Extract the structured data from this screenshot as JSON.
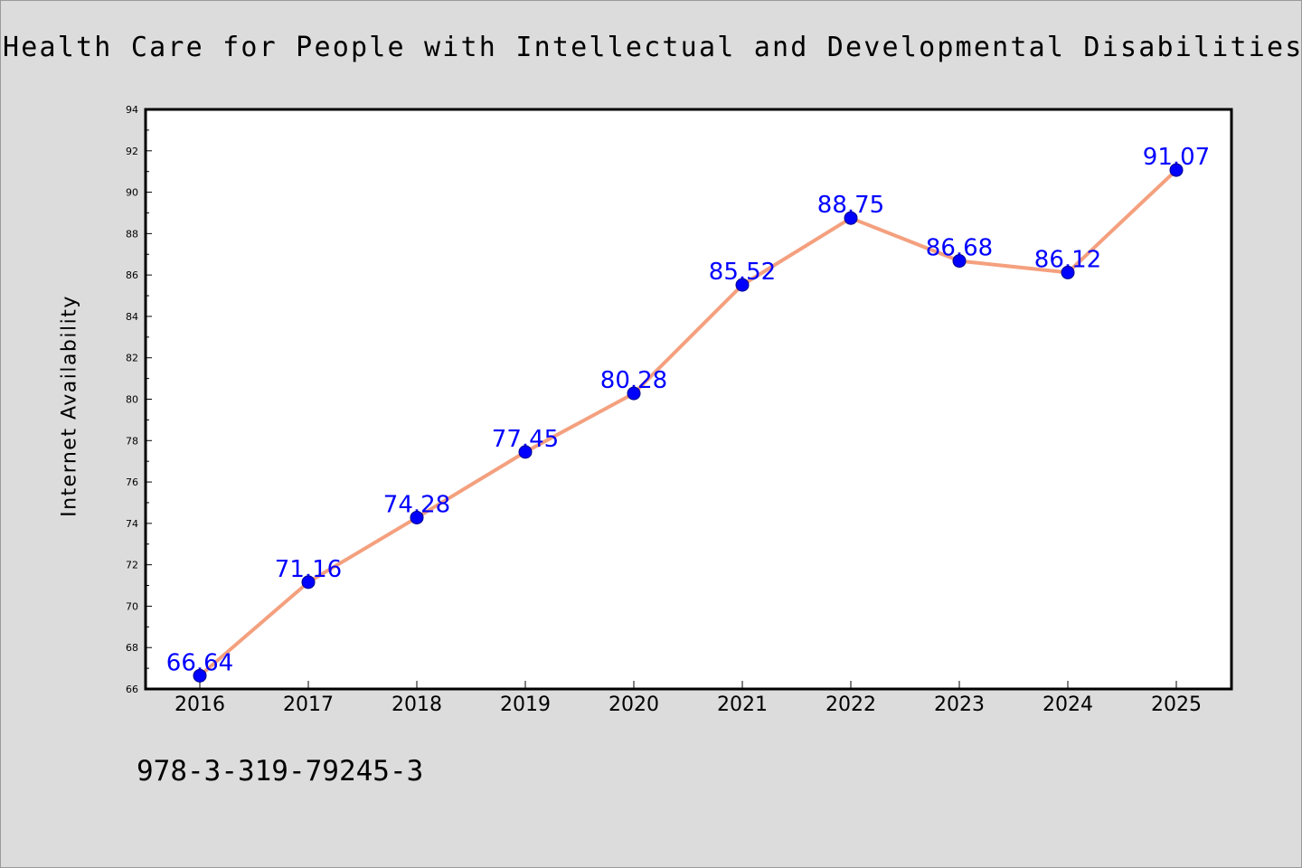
{
  "chart_data": {
    "type": "line",
    "title": "Health Care for People with Intellectual and Developmental Disabilities across t",
    "xlabel": "",
    "ylabel": "Internet Availability",
    "x": [
      "2016",
      "2017",
      "2018",
      "2019",
      "2020",
      "2021",
      "2022",
      "2023",
      "2024",
      "2025"
    ],
    "series": [
      {
        "values": [
          66.64,
          71.16,
          74.28,
          77.45,
          80.28,
          85.52,
          88.75,
          86.68,
          86.12,
          91.07
        ]
      }
    ],
    "data_labels": [
      "66.64",
      "71.16",
      "74.28",
      "77.45",
      "80.28",
      "85.52",
      "88.75",
      "86.68",
      "86.12",
      "91.07"
    ],
    "ylim": [
      66,
      94
    ],
    "yticks": [
      66,
      68,
      70,
      72,
      74,
      76,
      78,
      80,
      82,
      84,
      86,
      88,
      90,
      92,
      94
    ],
    "grid": false,
    "legend": "none",
    "colors": {
      "line": "#f4a07e",
      "marker": "#0000ff",
      "data_label": "#0000ff",
      "plot_bg": "#ffffff",
      "figure_bg": "#dcdcdc"
    }
  },
  "footnote": "978-3-319-79245-3"
}
